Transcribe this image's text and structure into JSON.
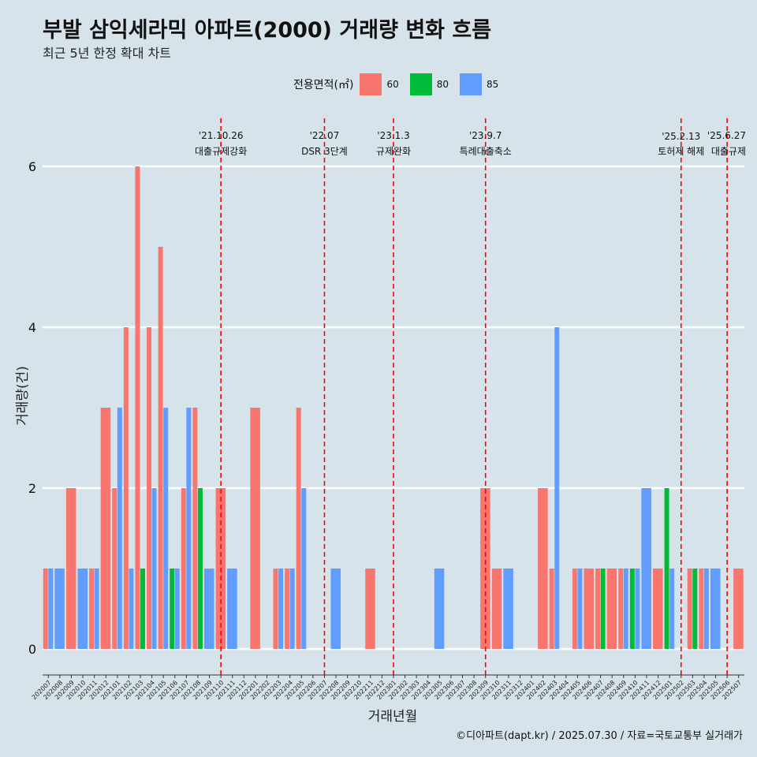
{
  "title": "부발 삼익세라믹 아파트(2000) 거래량 변화 흐름",
  "subtitle": "최근 5년 한정 확대 차트",
  "legend": {
    "title": "전용면적(㎡)",
    "items": [
      {
        "label": "60",
        "color": "#f8766d"
      },
      {
        "label": "80",
        "color": "#00ba38"
      },
      {
        "label": "85",
        "color": "#619cff"
      }
    ]
  },
  "caption": "©디아파트(dapt.kr) / 2025.07.30 / 자료=국토교통부 실거래가",
  "chart_data": {
    "type": "bar",
    "xlabel": "거래년월",
    "ylabel": "거래량(건)",
    "ylim": [
      0,
      6
    ],
    "yticks": [
      0,
      2,
      4,
      6
    ],
    "grid": true,
    "legend_position": "top",
    "categories": [
      "202007",
      "202008",
      "202009",
      "202010",
      "202011",
      "202012",
      "202101",
      "202102",
      "202103",
      "202104",
      "202105",
      "202106",
      "202107",
      "202108",
      "202109",
      "202110",
      "202111",
      "202112",
      "202201",
      "202202",
      "202203",
      "202204",
      "202205",
      "202206",
      "202207",
      "202208",
      "202209",
      "202210",
      "202211",
      "202212",
      "202301",
      "202302",
      "202303",
      "202304",
      "202305",
      "202306",
      "202307",
      "202308",
      "202309",
      "202310",
      "202311",
      "202312",
      "202401",
      "202402",
      "202403",
      "202404",
      "202405",
      "202406",
      "202407",
      "202408",
      "202409",
      "202410",
      "202411",
      "202412",
      "202501",
      "202502",
      "202503",
      "202504",
      "202505",
      "202506",
      "202507"
    ],
    "series": [
      {
        "name": "60",
        "color": "#f8766d",
        "values": [
          1,
          0,
          2,
          0,
          1,
          3,
          2,
          4,
          6,
          4,
          5,
          0,
          2,
          3,
          0,
          2,
          0,
          0,
          3,
          0,
          1,
          1,
          3,
          0,
          0,
          0,
          0,
          0,
          1,
          0,
          0,
          0,
          0,
          0,
          0,
          0,
          0,
          0,
          2,
          1,
          0,
          0,
          0,
          2,
          1,
          0,
          1,
          1,
          1,
          1,
          1,
          0,
          0,
          1,
          0,
          0,
          1,
          1,
          0,
          0,
          1
        ]
      },
      {
        "name": "80",
        "color": "#00ba38",
        "values": [
          0,
          0,
          0,
          0,
          0,
          0,
          0,
          0,
          1,
          0,
          0,
          1,
          0,
          2,
          0,
          0,
          0,
          0,
          0,
          0,
          0,
          0,
          0,
          0,
          0,
          0,
          0,
          0,
          0,
          0,
          0,
          0,
          0,
          0,
          0,
          0,
          0,
          0,
          0,
          0,
          0,
          0,
          0,
          0,
          0,
          0,
          0,
          0,
          1,
          0,
          0,
          1,
          0,
          0,
          2,
          0,
          1,
          0,
          0,
          0,
          0
        ]
      },
      {
        "name": "85",
        "color": "#619cff",
        "values": [
          1,
          1,
          0,
          1,
          1,
          0,
          3,
          1,
          0,
          2,
          3,
          1,
          3,
          0,
          1,
          0,
          1,
          0,
          0,
          0,
          1,
          1,
          2,
          0,
          0,
          1,
          0,
          0,
          0,
          0,
          0,
          0,
          0,
          0,
          1,
          0,
          0,
          0,
          0,
          0,
          1,
          0,
          0,
          0,
          4,
          0,
          1,
          0,
          0,
          0,
          1,
          1,
          2,
          0,
          1,
          0,
          0,
          1,
          1,
          0,
          0
        ]
      }
    ],
    "events": [
      {
        "date": "'21.10.26",
        "label": "대출규제강화",
        "category": "202110"
      },
      {
        "date": "'22.07",
        "label": "DSR 3단계",
        "category": "202207"
      },
      {
        "date": "'23.1.3",
        "label": "규제완화",
        "category": "202301"
      },
      {
        "date": "'23.9.7",
        "label": "특례대출축소",
        "category": "202309"
      },
      {
        "date": "'25.2.13",
        "label": "토허제 해제",
        "category": "202502"
      },
      {
        "date": "'25.6.27",
        "label": "대출규제",
        "category": "202506"
      }
    ]
  }
}
